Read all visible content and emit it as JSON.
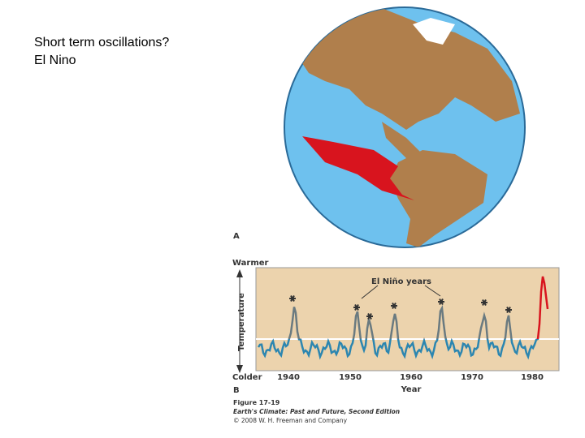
{
  "slide": {
    "text_lines": [
      "Short term oscillations?",
      "El Nino"
    ]
  },
  "figure": {
    "panel_label_a": "A",
    "panel_label_b": "B",
    "y_top": "Warmer",
    "y_bottom": "Colder",
    "y_label": "Temperature",
    "annotation": "El Niño years",
    "x_ticks": [
      "1940",
      "1950",
      "1960",
      "1970",
      "1980"
    ],
    "x_label": "Year",
    "caption": [
      "Figure 17-19",
      "Earth's Climate: Past and Future, Second Edition",
      "© 2008 W. H. Freeman and Company"
    ]
  }
}
